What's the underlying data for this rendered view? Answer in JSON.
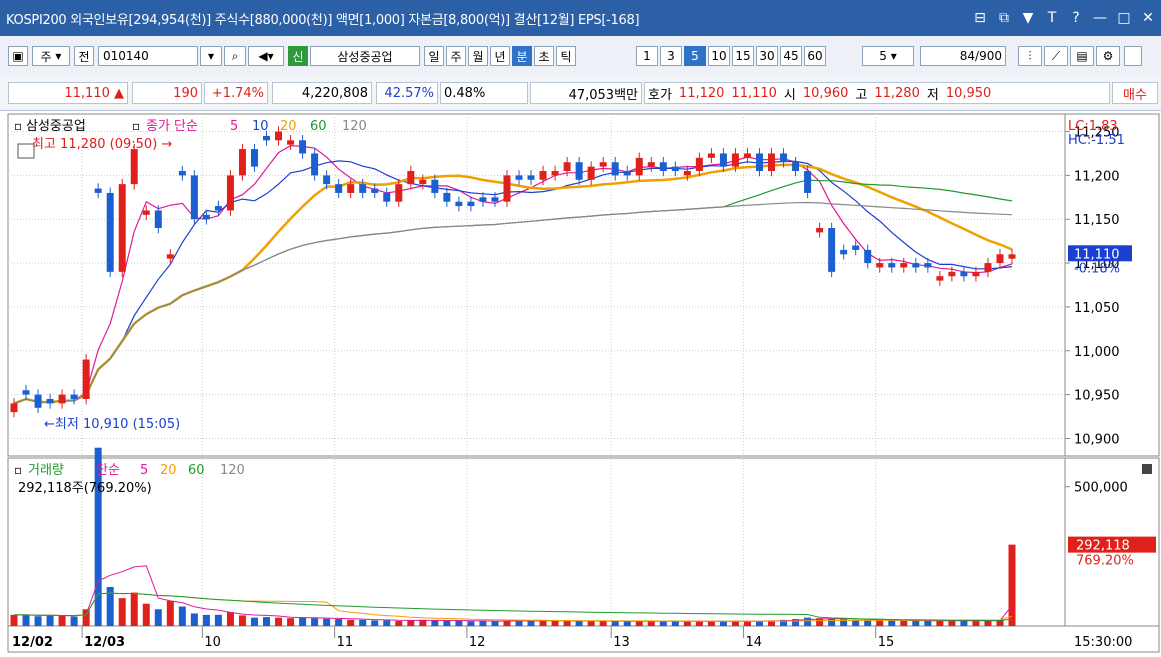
{
  "window": {
    "title": "KOSPI200 외국인보유[294,954(천)] 주식수[880,000(천)] 액면[1,000] 자본금[8,800(억)] 결산[12월] EPS[-168]",
    "buttons": [
      "restore-icon",
      "popout-icon",
      "pin-icon",
      "font-icon",
      "help-icon",
      "minimize-icon",
      "maximize-icon",
      "close-icon"
    ]
  },
  "toolbar": {
    "period_select": "주",
    "total_label": "전",
    "code": "010140",
    "search_icon": "search-icon",
    "speaker_icon": "speaker-icon",
    "new_badge": "신",
    "stock_name": "삼성중공업",
    "periods": [
      "일",
      "주",
      "월",
      "년",
      "분",
      "초",
      "틱"
    ],
    "active_period": "분",
    "intervals": [
      "1",
      "3",
      "5",
      "10",
      "15",
      "30",
      "45",
      "60"
    ],
    "active_interval": "5",
    "interval_select": "5",
    "count": "84",
    "count_total": "/900"
  },
  "quote": {
    "price": "11,110 ▲",
    "change": "190",
    "change_pct": "+1.74%",
    "volume": "4,220,808",
    "pct2": "42.57%",
    "pct3": "0.48%",
    "value": "47,053백만",
    "hoga_label": "호가",
    "ask": "11,120",
    "bid": "11,110",
    "open_label": "시",
    "open": "10,960",
    "high_label": "고",
    "high": "11,280",
    "low_label": "저",
    "low": "10,950",
    "buy_label": "매수"
  },
  "chart_data": {
    "type": "candlestick",
    "price_panel": {
      "legend_name": "삼성중공업",
      "legend_ma_label": "종가 단순",
      "ma_periods": [
        "5",
        "10",
        "20",
        "60",
        "120"
      ],
      "ma_colors": [
        "#e0189a",
        "#1b3fd0",
        "#f0a000",
        "#1f9a2e",
        "#888888"
      ],
      "high_annotation": "최고 11,280 (09:50) →",
      "low_annotation": "←최저 10,910 (15:05)",
      "lc_label": "LC:1.83",
      "hc_label": "HC:-1.51",
      "current_price_label": "11,110",
      "current_pct_label": "-0.18%",
      "y_ticks": [
        "11,250",
        "11,200",
        "11,150",
        "11,100",
        "11,050",
        "11,000",
        "10,950",
        "10,900"
      ],
      "y_tick_values": [
        11250,
        11200,
        11150,
        11100,
        11050,
        11000,
        10950,
        10900
      ],
      "ylim": [
        10880,
        11270
      ],
      "candles_ohlc_up": [
        1,
        0,
        0,
        0,
        1,
        0,
        1,
        0,
        0,
        1,
        1,
        1,
        0,
        1,
        0,
        0,
        0,
        0,
        1,
        1,
        0,
        0,
        1,
        1,
        0,
        0,
        0,
        0,
        1,
        0,
        0,
        0,
        1,
        1,
        1,
        0,
        0,
        0,
        0,
        0,
        0,
        1,
        0,
        0,
        1,
        1,
        1,
        0,
        1,
        1,
        0,
        0,
        1,
        1,
        0,
        0,
        1,
        1,
        1,
        0,
        1,
        1,
        0,
        1,
        0,
        0,
        0,
        1,
        0,
        0,
        0,
        0,
        1,
        0,
        1,
        0,
        0,
        1,
        1,
        0,
        1,
        1,
        1,
        1
      ],
      "candles_close": [
        10940,
        10950,
        10935,
        10940,
        10950,
        10945,
        10990,
        11180,
        11090,
        11190,
        11230,
        11160,
        11140,
        11110,
        11200,
        11150,
        11150,
        11160,
        11200,
        11230,
        11210,
        11240,
        11250,
        11240,
        11225,
        11200,
        11190,
        11180,
        11190,
        11180,
        11180,
        11170,
        11190,
        11205,
        11195,
        11180,
        11170,
        11165,
        11165,
        11170,
        11170,
        11200,
        11195,
        11195,
        11205,
        11205,
        11215,
        11195,
        11210,
        11215,
        11200,
        11200,
        11220,
        11215,
        11205,
        11205,
        11205,
        11220,
        11225,
        11210,
        11225,
        11225,
        11205,
        11225,
        11215,
        11205,
        11180,
        11140,
        11090,
        11110,
        11115,
        11100,
        11100,
        11095,
        11100,
        11095,
        11095,
        11085,
        11090,
        11085,
        11090,
        11100,
        11110,
        11110
      ]
    },
    "volume_panel": {
      "legend_name": "거래량",
      "legend_ma_label": "단순",
      "ma_periods": [
        "5",
        "20",
        "60",
        "120"
      ],
      "summary": "292,118주(769.20%)",
      "y_ticks": [
        "500,000"
      ],
      "current_label": "292,118",
      "current_pct_label": "769.20%"
    },
    "x_ticks": [
      "12/02",
      "12/03",
      "10",
      "11",
      "12",
      "13",
      "14",
      "15"
    ],
    "time_label": "15:30:00"
  }
}
